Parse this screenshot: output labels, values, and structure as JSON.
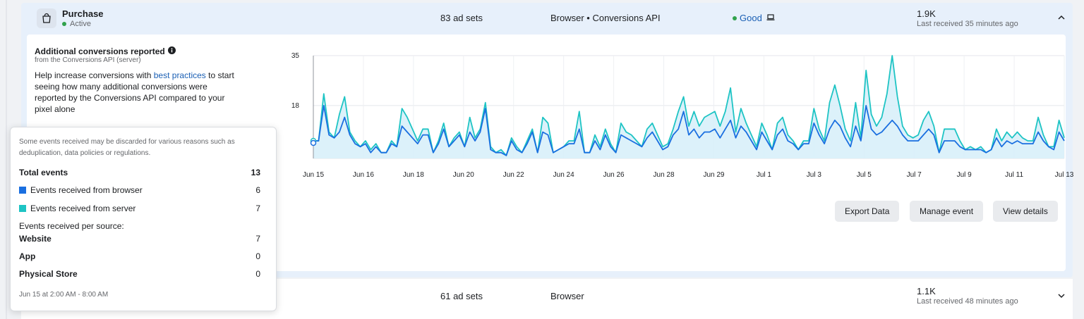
{
  "events": [
    {
      "name": "Purchase",
      "status": "Active",
      "ad_sets": "83 ad sets",
      "integration": "Browser • Conversions API",
      "quality": "Good",
      "count": "1.9K",
      "last_received": "Last received 35 minutes ago",
      "icon": "shopping-bag-icon"
    },
    {
      "ad_sets": "61 ad sets",
      "integration": "Browser",
      "count": "1.1K",
      "last_received": "Last received 48 minutes ago"
    }
  ],
  "panel": {
    "title": "Additional conversions reported",
    "subtitle": "from the Conversions API (server)",
    "desc_before": "Help increase conversions with ",
    "desc_link": "best practices",
    "desc_after": " to start seeing how many additional conversions were reported by the Conversions API compared to your pixel alone"
  },
  "buttons": {
    "export": "Export Data",
    "manage": "Manage event",
    "view": "View details"
  },
  "colors": {
    "browser": "#1a6fe0",
    "server": "#1ec4c4",
    "server_fill": "#d6eef9",
    "good": "#31a24c"
  },
  "chart_data": {
    "type": "line",
    "y_ticks": [
      "35",
      "18"
    ],
    "x_tick_labels": [
      "Jun 15",
      "Jun 16",
      "Jun 18",
      "Jun 20",
      "Jun 22",
      "Jun 24",
      "Jun 26",
      "Jun 28",
      "Jun 29",
      "Jul 1",
      "Jul 3",
      "Jul 5",
      "Jul 7",
      "Jul 9",
      "Jul 11",
      "Jul 13"
    ],
    "ylim": [
      0,
      35
    ],
    "grid": true,
    "series": [
      {
        "name": "Events received from server",
        "values": [
          6,
          6,
          22,
          9,
          7,
          15,
          21,
          9,
          6,
          4,
          6,
          3,
          5,
          2,
          2,
          6,
          4,
          17,
          14,
          10,
          6,
          10,
          10,
          2,
          6,
          12,
          4,
          7,
          9,
          4,
          14,
          7,
          10,
          19,
          4,
          2,
          3,
          1,
          7,
          4,
          2,
          6,
          10,
          2,
          14,
          12,
          2,
          3,
          4,
          6,
          6,
          16,
          2,
          2,
          8,
          4,
          10,
          5,
          2,
          12,
          9,
          8,
          6,
          4,
          10,
          12,
          8,
          4,
          5,
          10,
          16,
          21,
          11,
          16,
          11,
          14,
          15,
          16,
          11,
          16,
          24,
          9,
          17,
          12,
          8,
          4,
          12,
          8,
          3,
          12,
          14,
          8,
          6,
          3,
          6,
          6,
          17,
          10,
          6,
          19,
          25,
          18,
          10,
          6,
          19,
          7,
          30,
          15,
          11,
          14,
          22,
          35,
          21,
          11,
          8,
          7,
          8,
          13,
          16,
          11,
          2,
          10,
          10,
          10,
          6,
          3,
          4,
          3,
          4,
          2,
          3,
          10,
          6,
          9,
          7,
          9,
          7,
          6,
          6,
          14,
          8,
          4,
          4,
          13,
          7
        ],
        "color": "#1ec4c4"
      },
      {
        "name": "Events received from browser",
        "values": [
          6,
          6,
          18,
          8,
          7,
          9,
          14,
          8,
          5,
          4,
          5,
          2,
          4,
          2,
          2,
          5,
          4,
          11,
          9,
          7,
          5,
          8,
          8,
          2,
          5,
          10,
          4,
          6,
          8,
          4,
          9,
          6,
          9,
          17,
          3,
          2,
          2,
          1,
          6,
          3,
          2,
          5,
          9,
          2,
          9,
          8,
          2,
          3,
          4,
          5,
          5,
          10,
          2,
          2,
          6,
          3,
          8,
          4,
          2,
          8,
          7,
          6,
          5,
          4,
          7,
          9,
          6,
          3,
          4,
          8,
          10,
          16,
          8,
          10,
          7,
          9,
          9,
          10,
          7,
          10,
          13,
          7,
          11,
          9,
          6,
          3,
          9,
          6,
          3,
          8,
          10,
          6,
          5,
          3,
          5,
          5,
          12,
          8,
          5,
          10,
          13,
          11,
          7,
          4,
          11,
          6,
          18,
          10,
          8,
          9,
          11,
          13,
          11,
          8,
          6,
          6,
          6,
          8,
          10,
          8,
          2,
          6,
          6,
          6,
          4,
          3,
          3,
          3,
          3,
          2,
          3,
          7,
          4,
          6,
          5,
          6,
          5,
          5,
          5,
          9,
          6,
          4,
          3,
          9,
          6
        ],
        "color": "#1a6fe0"
      }
    ]
  },
  "tooltip": {
    "note": "Some events received may be discarded for various reasons such as deduplication, data policies or regulations.",
    "total_label": "Total events",
    "total_value": "13",
    "browser_label": "Events received from browser",
    "browser_value": "6",
    "server_label": "Events received from server",
    "server_value": "7",
    "per_source_label": "Events received per source:",
    "website_label": "Website",
    "website_value": "7",
    "app_label": "App",
    "app_value": "0",
    "store_label": "Physical Store",
    "store_value": "0",
    "time_range": "Jun 15 at 2:00 AM - 8:00 AM"
  }
}
